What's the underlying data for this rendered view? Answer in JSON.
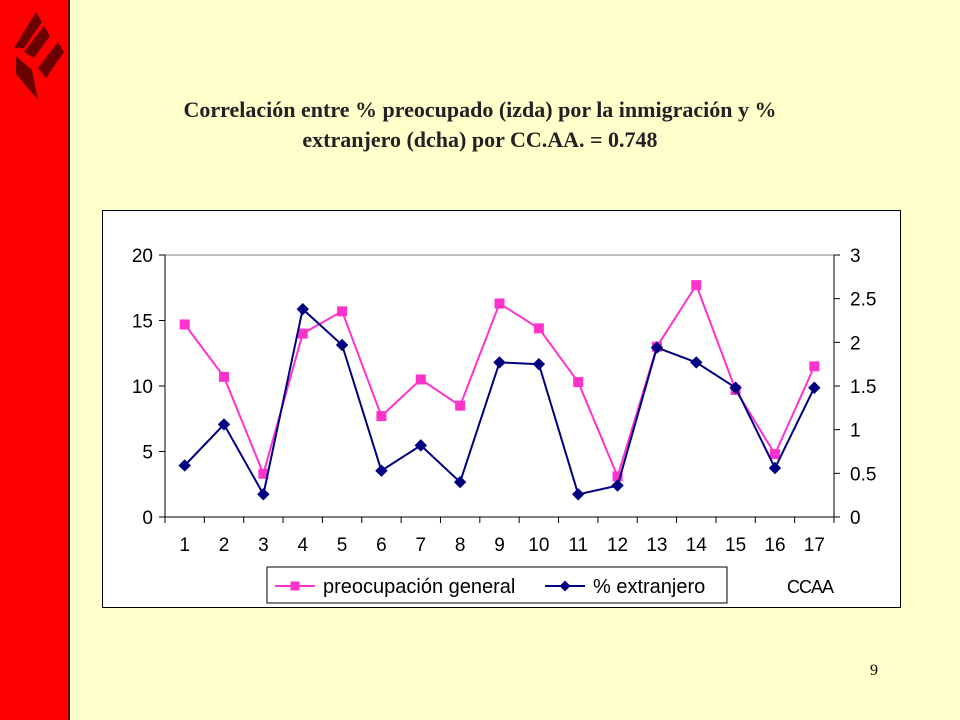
{
  "slide": {
    "title_line1": "Correlación entre % preocupado (izda) por la inmigración y %",
    "title_line2": "extranjero (dcha) por CC.AA. = 0.748",
    "page_number": "9",
    "accent_color": "#FF0000",
    "background_color": "#FFFFCC"
  },
  "chart_data": {
    "type": "line",
    "categories": [
      "1",
      "2",
      "3",
      "4",
      "5",
      "6",
      "7",
      "8",
      "9",
      "10",
      "11",
      "12",
      "13",
      "14",
      "15",
      "16",
      "17"
    ],
    "xlabel": "CCAA",
    "y_left": {
      "min": 0,
      "max": 20,
      "ticks": [
        "0",
        "5",
        "10",
        "15",
        "20"
      ]
    },
    "y_right": {
      "min": 0,
      "max": 3,
      "ticks": [
        "0",
        "0.5",
        "1",
        "1.5",
        "2",
        "2.5",
        "3"
      ]
    },
    "grid": false,
    "legend_position": "bottom",
    "series": [
      {
        "name": "preocupación general",
        "axis": "left",
        "color": "#FF33CC",
        "marker": "square",
        "values": [
          14.7,
          10.7,
          3.3,
          14.0,
          15.7,
          7.7,
          10.5,
          8.5,
          16.3,
          14.4,
          10.3,
          3.1,
          13.0,
          17.7,
          9.7,
          4.8,
          11.5
        ]
      },
      {
        "name": "% extranjero",
        "axis": "right",
        "color": "#000080",
        "marker": "diamond",
        "values": [
          0.59,
          1.06,
          0.26,
          2.38,
          1.97,
          0.53,
          0.82,
          0.4,
          1.77,
          1.75,
          0.26,
          0.36,
          1.94,
          1.77,
          1.48,
          0.56,
          1.48
        ]
      }
    ]
  }
}
